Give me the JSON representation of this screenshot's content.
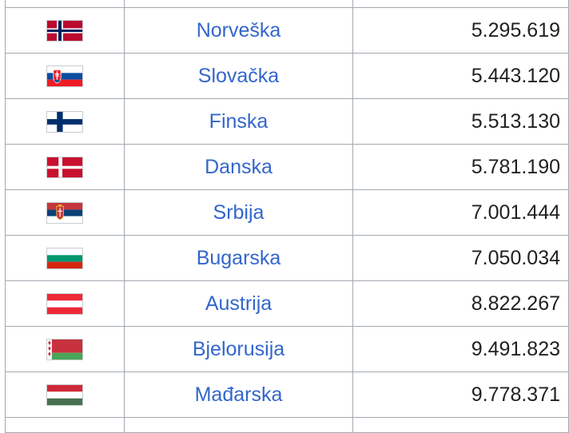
{
  "table": {
    "rows": [
      {
        "flag_icon": "norway-flag-icon",
        "country": "Norveška",
        "population": "5.295.619"
      },
      {
        "flag_icon": "slovakia-flag-icon",
        "country": "Slovačka",
        "population": "5.443.120"
      },
      {
        "flag_icon": "finland-flag-icon",
        "country": "Finska",
        "population": "5.513.130"
      },
      {
        "flag_icon": "denmark-flag-icon",
        "country": "Danska",
        "population": "5.781.190"
      },
      {
        "flag_icon": "serbia-flag-icon",
        "country": "Srbija",
        "population": "7.001.444"
      },
      {
        "flag_icon": "bulgaria-flag-icon",
        "country": "Bugarska",
        "population": "7.050.034"
      },
      {
        "flag_icon": "austria-flag-icon",
        "country": "Austrija",
        "population": "8.822.267"
      },
      {
        "flag_icon": "belarus-flag-icon",
        "country": "Bjelorusija",
        "population": "9.491.823"
      },
      {
        "flag_icon": "hungary-flag-icon",
        "country": "Mađarska",
        "population": "9.778.371"
      }
    ]
  },
  "colors": {
    "link": "#3366cc",
    "text": "#202122",
    "border": "#a2a9b1"
  }
}
